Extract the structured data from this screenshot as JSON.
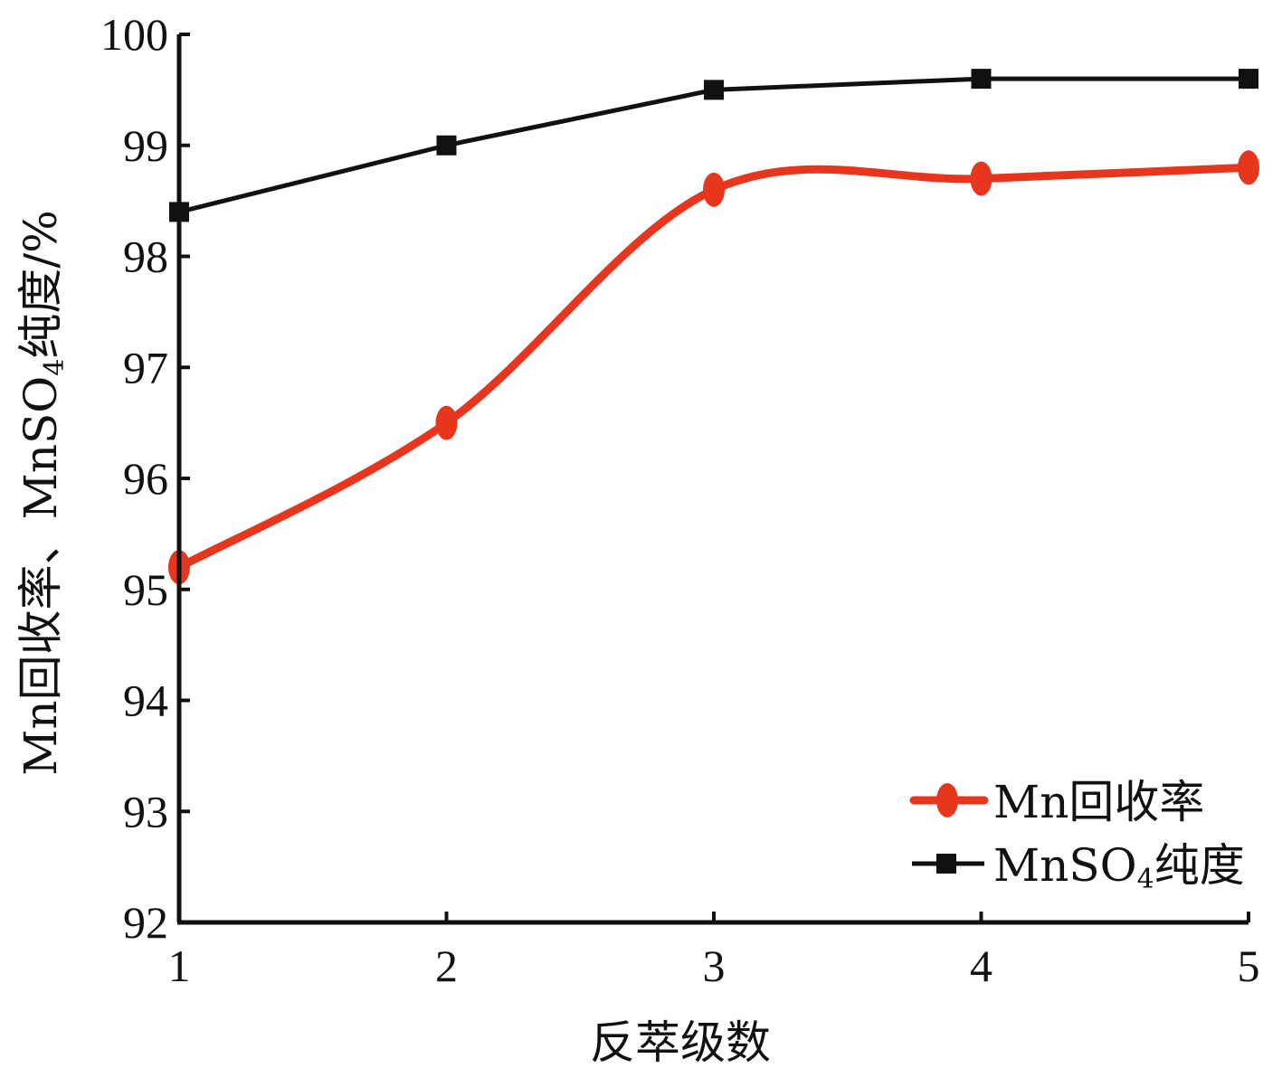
{
  "chart_data": {
    "type": "line",
    "x": [
      1,
      2,
      3,
      4,
      5
    ],
    "series": [
      {
        "name": "Mn回收率",
        "values": [
          95.2,
          96.5,
          98.6,
          98.7,
          98.8
        ],
        "color": "#e8361e",
        "marker": "circle",
        "smooth": true
      },
      {
        "name": "MnSO",
        "name_subscript": "4",
        "name_suffix": "纯度",
        "values": [
          98.4,
          99.0,
          99.5,
          99.6,
          99.6
        ],
        "color": "#111111",
        "marker": "square",
        "smooth": false
      }
    ],
    "xlabel": "反萃级数",
    "ylabel": "Mn回收率、MnSO",
    "ylabel_subscript": "4",
    "ylabel_suffix": "纯度/%",
    "xlim": [
      1,
      5
    ],
    "ylim": [
      92,
      100
    ],
    "x_ticks": [
      "1",
      "2",
      "3",
      "4",
      "5"
    ],
    "y_ticks": [
      "92",
      "93",
      "94",
      "95",
      "96",
      "97",
      "98",
      "99",
      "100"
    ],
    "grid": false,
    "legend_position": "bottom-right"
  }
}
